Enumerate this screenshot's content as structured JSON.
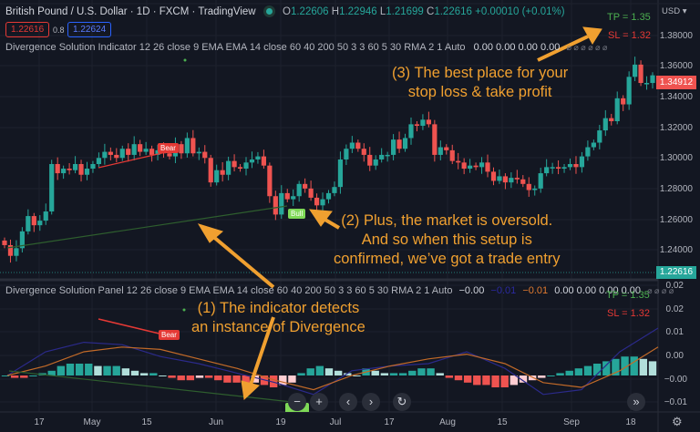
{
  "header": {
    "symbol": "British Pound / U.S. Dollar · 1D · FXCM · TradingView",
    "ohlc": {
      "o_label": "O",
      "o": "1.22606",
      "h_label": "H",
      "h": "1.22946",
      "l_label": "L",
      "l": "1.21699",
      "c_label": "C",
      "c": "1.22616",
      "change": "+0.00010 (+0.01%)"
    },
    "sell_price": "1.22616",
    "spread": "0.8",
    "buy_price": "1.22624"
  },
  "indicator_legend": {
    "title": "Divergence Solution Indicator 12 26 close 9 EMA EMA 14 close 60 40 200 50 3 3 60 5 30 RMA 2 1 Auto",
    "values": "0.00 0.00 0.00 0.00",
    "empty": "⌀ ⌀ ⌀ ⌀ ⌀ ⌀"
  },
  "panel_legend": {
    "title": "Divergence Solution Panel 12 26 close 9 EMA EMA 14 close 60 40 200 50 3 3 60 5 30 RMA 2 1 Auto",
    "v1": "−0.00",
    "v2": "−0.01",
    "v3": "−0.01",
    "v4": "0.00 0.00 0.00 0.00",
    "empty": "⌀ ⌀ ⌀ ⌀"
  },
  "annotations": {
    "a1_line1": "(1) The indicator detects",
    "a1_line2": "an instance of Divergence",
    "a2_line1": "(2) Plus, the market is oversold.",
    "a2_line2": "And so when this setup is",
    "a2_line3": "confirmed, we’ve got a trade entry",
    "a3_line1": "(3) The best place for your",
    "a3_line2": "stop loss & take profit",
    "tp": "TP = 1.35",
    "sl": "SL = 1.32",
    "bear": "Bear",
    "bull": "Bull"
  },
  "price_axis": {
    "currency": "USD ▾",
    "labels": [
      "1.38000",
      "1.36000",
      "1.34000",
      "1.32000",
      "1.30000",
      "1.28000",
      "1.26000",
      "1.24000"
    ],
    "last_price": "1.34912",
    "current_price": "1.22616"
  },
  "panel_axis": {
    "labels": [
      "0.02",
      "0.02",
      "0.01",
      "0.00",
      "−0.00",
      "−0.01"
    ]
  },
  "time_axis": {
    "labels": [
      "17",
      "May",
      "15",
      "Jun",
      "19",
      "Jul",
      "17",
      "Aug",
      "15",
      "Sep",
      "18"
    ]
  },
  "nav": {
    "zoom_out": "−",
    "zoom_in": "+",
    "left": "‹",
    "right": "›",
    "reset": "↻",
    "scroll_end": "»",
    "settings": "⚙"
  },
  "colors": {
    "bg": "#131722",
    "up": "#26a69a",
    "down": "#ef5350",
    "accent": "#f0a030",
    "tp": "#4caf50",
    "sl": "#e53935"
  },
  "chart_data": [
    {
      "type": "candlestick",
      "title": "British Pound / U.S. Dollar · 1D · FXCM",
      "xlabel": "",
      "ylabel": "USD",
      "ylim": [
        1.22,
        1.39
      ],
      "x_ticks": [
        "17",
        "May",
        "15",
        "Jun",
        "19",
        "Jul",
        "17",
        "Aug",
        "15",
        "Sep",
        "18"
      ],
      "y_ticks": [
        1.24,
        1.26,
        1.28,
        1.3,
        1.32,
        1.34,
        1.36,
        1.38
      ],
      "series": [
        {
          "name": "GBPUSD close (approx)",
          "values": [
            1.243,
            1.236,
            1.241,
            1.252,
            1.262,
            1.256,
            1.259,
            1.265,
            1.296,
            1.29,
            1.293,
            1.292,
            1.296,
            1.289,
            1.293,
            1.296,
            1.3,
            1.304,
            1.302,
            1.3,
            1.306,
            1.302,
            1.309,
            1.304,
            1.306,
            1.302,
            1.305,
            1.303,
            1.301,
            1.309,
            1.303,
            1.313,
            1.303,
            1.304,
            1.3,
            1.284,
            1.292,
            1.289,
            1.298,
            1.294,
            1.293,
            1.297,
            1.299,
            1.301,
            1.295,
            1.275,
            1.263,
            1.277,
            1.273,
            1.275,
            1.283,
            1.28,
            1.274,
            1.269,
            1.273,
            1.277,
            1.281,
            1.299,
            1.306,
            1.31,
            1.306,
            1.302,
            1.295,
            1.299,
            1.302,
            1.302,
            1.312,
            1.306,
            1.313,
            1.322,
            1.321,
            1.325,
            1.322,
            1.302,
            1.307,
            1.305,
            1.298,
            1.297,
            1.293,
            1.295,
            1.294,
            1.297,
            1.291,
            1.285,
            1.288,
            1.284,
            1.287,
            1.286,
            1.283,
            1.279,
            1.28,
            1.29,
            1.294,
            1.294,
            1.293,
            1.294,
            1.296,
            1.294,
            1.301,
            1.307,
            1.31,
            1.318,
            1.326,
            1.324,
            1.339,
            1.335,
            1.353,
            1.361,
            1.349,
            1.349,
            1.354
          ]
        }
      ],
      "annotations": [
        "Bear divergence label near May high",
        "Bull label near Jun low ~1.265",
        "TP = 1.35",
        "SL = 1.32"
      ],
      "last_price": 1.34912
    },
    {
      "type": "bar",
      "title": "Divergence Solution Panel",
      "ylim": [
        -0.015,
        0.025
      ],
      "y_ticks": [
        0.02,
        0.02,
        0.01,
        0.0,
        -0.0,
        -0.01
      ],
      "series": [
        {
          "name": "Histogram (approx)",
          "values": [
            0.0,
            -0.001,
            -0.001,
            0.0,
            0.001,
            0.002,
            0.004,
            0.005,
            0.005,
            0.005,
            0.004,
            0.004,
            0.004,
            0.003,
            0.002,
            0.001,
            0.001,
            0.0,
            -0.001,
            -0.002,
            -0.002,
            -0.001,
            -0.001,
            -0.002,
            -0.003,
            -0.003,
            -0.004,
            -0.003,
            -0.004,
            -0.005,
            -0.004,
            -0.003,
            0.001,
            0.003,
            0.004,
            0.003,
            0.002,
            0.001,
            0.0,
            0.003,
            0.002,
            0.001,
            0.001,
            0.001,
            0.002,
            0.003,
            0.003,
            0.001,
            -0.001,
            -0.002,
            -0.003,
            -0.004,
            -0.004,
            -0.005,
            -0.005,
            -0.004,
            -0.003,
            -0.002,
            -0.001,
            0.0,
            0.001,
            0.002,
            0.003,
            0.004,
            0.005,
            0.006,
            0.007,
            0.008,
            0.008,
            0.007,
            0.006
          ]
        },
        {
          "name": "Fast line (blue)",
          "values": [
            0.0,
            0.01,
            0.014,
            0.013,
            0.008,
            0.005,
            0.001,
            -0.003,
            -0.008,
            0.002,
            0.004,
            0.005,
            0.01,
            0.003,
            -0.008,
            -0.006,
            0.01,
            0.02
          ]
        },
        {
          "name": "Slow line (orange)",
          "values": [
            0.0,
            0.004,
            0.01,
            0.012,
            0.011,
            0.007,
            0.003,
            -0.002,
            -0.006,
            0.0,
            0.004,
            0.007,
            0.009,
            0.005,
            -0.003,
            -0.005,
            0.002,
            0.012
          ]
        }
      ]
    }
  ]
}
